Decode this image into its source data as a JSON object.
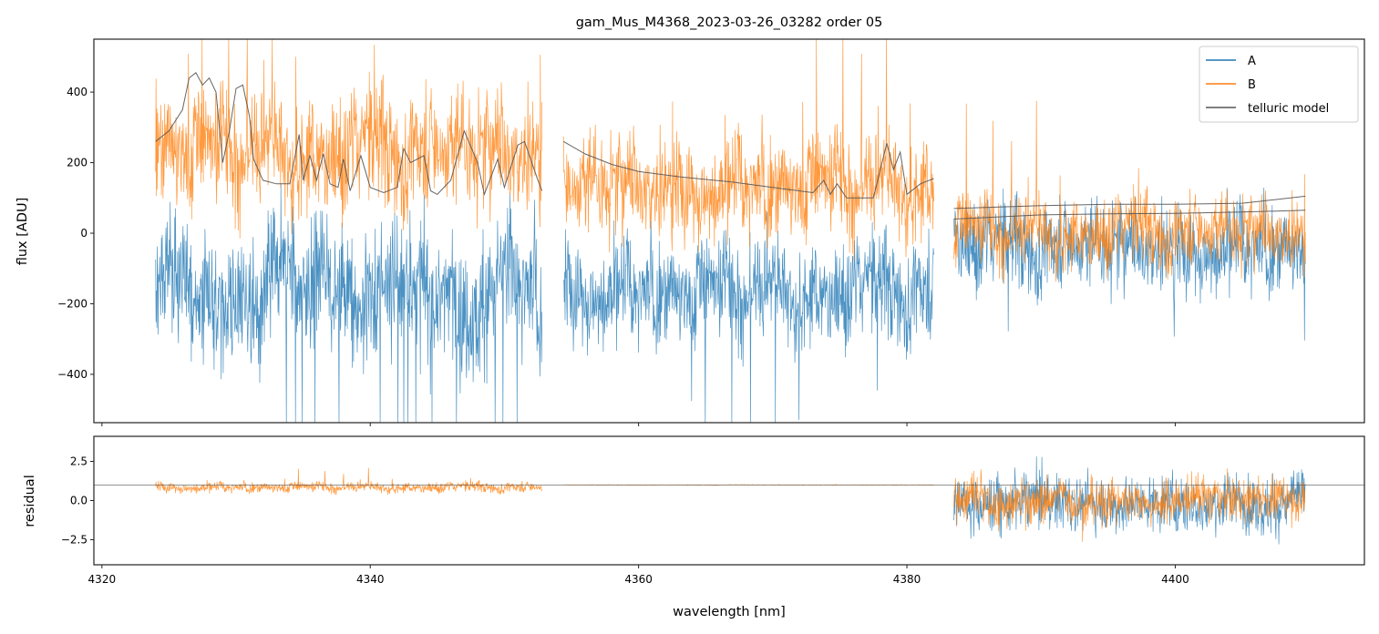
{
  "chart_data": [
    {
      "type": "line",
      "title": "gam_Mus_M4368_2023-03-26_03282  order 05",
      "xlabel": "",
      "ylabel": "flux [ADU]",
      "xlim": [
        4319.4,
        4414.1
      ],
      "ylim": [
        -537,
        550
      ],
      "xticks": [
        4320,
        4340,
        4360,
        4380,
        4400
      ],
      "yticks": [
        -400,
        -200,
        0,
        200,
        400
      ],
      "ytick_labels": [
        "−400",
        "−200",
        "0",
        "200",
        "400"
      ],
      "legend": {
        "placement": "top-right",
        "entries": [
          "A",
          "B",
          "telluric model"
        ]
      },
      "colors": {
        "A": "#1f77b4",
        "B": "#ff7f0e",
        "telluric model": "#555555"
      },
      "segments": [
        {
          "range": [
            4324.0,
            4352.8
          ],
          "A_level": -150,
          "A_noise": 170,
          "B_level": 260,
          "B_noise": 150
        },
        {
          "range": [
            4354.4,
            4382.0
          ],
          "A_level": -140,
          "A_noise": 130,
          "B_level": 160,
          "B_noise": 130
        },
        {
          "range": [
            4383.5,
            4409.7
          ],
          "A_level": -20,
          "A_noise": 110,
          "B_level": 20,
          "B_noise": 90
        }
      ],
      "telluric_model": [
        {
          "x": [
            4324,
            4325,
            4326,
            4326.5,
            4327,
            4327.5,
            4328,
            4328.5,
            4329,
            4329.5,
            4330,
            4330.5,
            4331,
            4331.3,
            4332,
            4333,
            4334,
            4334.7,
            4335,
            4335.5,
            4336,
            4336.5,
            4337,
            4337.6,
            4338,
            4338.5,
            4339.3,
            4340,
            4341,
            4342,
            4342.5,
            4343,
            4344,
            4344.5,
            4345,
            4346,
            4347,
            4348,
            4348.5,
            4349.5,
            4350,
            4351,
            4351.5,
            4352.5,
            4352.8
          ],
          "y": [
            260,
            290,
            350,
            440,
            455,
            420,
            440,
            400,
            200,
            290,
            410,
            420,
            330,
            210,
            150,
            140,
            140,
            280,
            150,
            220,
            150,
            225,
            140,
            130,
            210,
            120,
            220,
            130,
            115,
            130,
            240,
            200,
            220,
            120,
            110,
            150,
            290,
            200,
            110,
            210,
            130,
            250,
            260,
            150,
            120
          ]
        },
        {
          "x": [
            4354.4,
            4356,
            4358,
            4360,
            4363,
            4367,
            4370,
            4373,
            4373.8,
            4374.3,
            4374.8,
            4375.5,
            4376.5,
            4377.5,
            4378.5,
            4379,
            4379.5,
            4380,
            4381,
            4382
          ],
          "y": [
            260,
            225,
            195,
            175,
            160,
            145,
            130,
            115,
            150,
            110,
            140,
            100,
            100,
            100,
            255,
            180,
            230,
            110,
            140,
            155
          ]
        },
        {
          "x": [
            4383.5,
            4390,
            4395,
            4400,
            4405,
            4409.7
          ],
          "y": [
            70,
            78,
            82,
            82,
            85,
            105
          ]
        },
        {
          "x": [
            4383.5,
            4390,
            4395,
            4400,
            4405,
            4409.7
          ],
          "y": [
            40,
            52,
            55,
            56,
            60,
            65
          ]
        }
      ]
    },
    {
      "type": "line",
      "xlabel": "wavelength [nm]",
      "ylabel": "residual",
      "xlim": [
        4319.4,
        4414.1
      ],
      "ylim": [
        -4.1,
        4.1
      ],
      "xticks": [
        4320,
        4340,
        4360,
        4380,
        4400
      ],
      "xtick_labels": [
        "4320",
        "4340",
        "4360",
        "4380",
        "4400"
      ],
      "yticks": [
        -2.5,
        0.0,
        2.5
      ],
      "ytick_labels": [
        "−2.5",
        "0.0",
        "2.5"
      ],
      "reference_line": 1.0,
      "segments": [
        {
          "range": [
            4324.0,
            4352.8
          ],
          "B_level": 0.9,
          "B_noise": 0.3
        },
        {
          "range": [
            4354.4,
            4382.0
          ],
          "B_level": 1.0,
          "B_noise": 0.02
        },
        {
          "range": [
            4383.5,
            4409.7
          ],
          "A_level": 0,
          "A_noise": 1.6,
          "B_level": 0.1,
          "B_noise": 1.3
        }
      ]
    }
  ]
}
